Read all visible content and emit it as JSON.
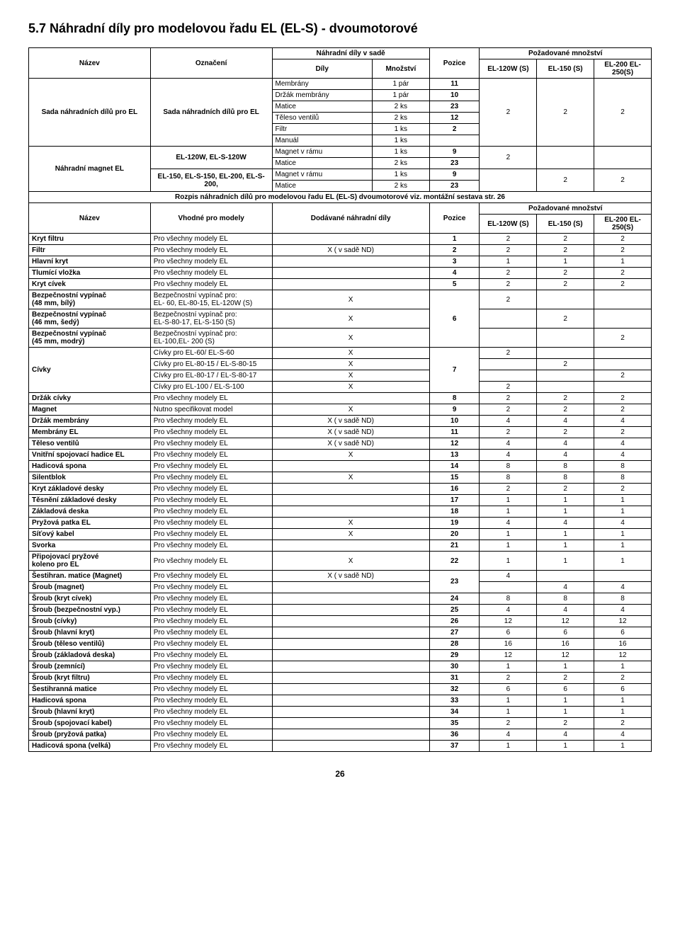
{
  "title": "5.7 Náhradní díly pro modelovou řadu EL (EL-S)  - dvoumotorové",
  "page_number": "26",
  "table1": {
    "headers": {
      "nazev": "Název",
      "oznaceni": "Označení",
      "sada": "Náhradní díly v sadě",
      "dily": "Díly",
      "mnozstvi": "Množství",
      "pozice": "Pozice",
      "pozad": "Požadované množství",
      "col_a": "EL-120W (S)",
      "col_b": "EL-150 (S)",
      "col_c": "EL-200 EL-250(S)"
    },
    "group1": {
      "nazev": "Sada náhradních dílů pro EL",
      "oznaceni": "Sada náhradních dílů pro EL",
      "rows": [
        [
          "Membrány",
          "1 pár",
          "11"
        ],
        [
          "Držák membrány",
          "1 pár",
          "10"
        ],
        [
          "Matice",
          "2 ks",
          "23"
        ],
        [
          "Těleso ventilů",
          "2 ks",
          "12"
        ],
        [
          "Filtr",
          "1 ks",
          "2"
        ],
        [
          "Manuál",
          "1 ks",
          ""
        ]
      ],
      "qty": [
        "2",
        "2",
        "2"
      ]
    },
    "group2": {
      "nazev": "Náhradní magnet EL",
      "sub1": {
        "oznaceni": "EL-120W, EL-S-120W",
        "rows": [
          [
            "Magnet v rámu",
            "1 ks",
            "9"
          ],
          [
            "Matice",
            "2 ks",
            "23"
          ]
        ],
        "qty": [
          "2",
          "",
          ""
        ]
      },
      "sub2": {
        "oznaceni": "EL-150, EL-S-150, EL-200, EL-S-200,",
        "rows": [
          [
            "Magnet v rámu",
            "1 ks",
            "9"
          ],
          [
            "Matice",
            "2 ks",
            "23"
          ]
        ],
        "qty": [
          "",
          "2",
          "2"
        ]
      }
    }
  },
  "divider": "Rozpis náhradních dílů pro modelovou řadu EL (EL-S)  dvoumotorové viz. montážní  sestava str. 26",
  "table2": {
    "headers": {
      "nazev": "Název",
      "vhodne": "Vhodné pro modely",
      "dodavane": "Dodávané náhradní díly",
      "pozice": "Pozice",
      "pozad": "Požadované množství",
      "col_a": "EL-120W (S)",
      "col_b": "EL-150 (S)",
      "col_c": "EL-200 EL-250(S)"
    },
    "rows": [
      {
        "n": "Kryt filtru",
        "v": "Pro  všechny  modely EL",
        "d": "",
        "p": "1",
        "a": "2",
        "b": "2",
        "c": "2"
      },
      {
        "n": "Filtr",
        "v": "Pro  všechny  modely EL",
        "d": "X ( v sadě ND)",
        "p": "2",
        "a": "2",
        "b": "2",
        "c": "2"
      },
      {
        "n": "Hlavní kryt",
        "v": "Pro  všechny  modely EL",
        "d": "",
        "p": "3",
        "a": "1",
        "b": "1",
        "c": "1"
      },
      {
        "n": "Tlumící vložka",
        "v": "Pro  všechny  modely EL",
        "d": "",
        "p": "4",
        "a": "2",
        "b": "2",
        "c": "2"
      },
      {
        "n": "Kryt  cívek",
        "v": "Pro  všechny  modely EL",
        "d": "",
        "p": "5",
        "a": "2",
        "b": "2",
        "c": "2"
      },
      {
        "n": "Bezpečnostní vypínač\n (48 mm, bílý)",
        "v": "Bezpečnostní vypínač pro:\nEL- 60, EL-80-15, EL-120W (S)",
        "d": "X",
        "p": "",
        "a": "2",
        "b": "",
        "c": ""
      },
      {
        "n": "Bezpečnostní vypínač\n (46 mm, šedý)",
        "v": "Bezpečnostní vypínač pro:\nEL-S-80-17, EL-S-150 (S)",
        "d": "X",
        "p": "6",
        "a": "",
        "b": "2",
        "c": ""
      },
      {
        "n": "Bezpečnostní vypínač\n(45 mm, modrý)",
        "v": "Bezpečnostní vypínač pro:\nEL-100,EL- 200 (S)",
        "d": "X",
        "p": "",
        "a": "",
        "b": "",
        "c": "2"
      },
      {
        "n": "",
        "v": "Cívky pro  EL-60/ EL-S-60",
        "d": "X",
        "p": "",
        "a": "2",
        "b": "",
        "c": "",
        "civky_start": true
      },
      {
        "n": "Cívky",
        "v": "Cívky pro EL-80-15 / EL-S-80-15",
        "d": "X",
        "p": "7",
        "a": "",
        "b": "2",
        "c": ""
      },
      {
        "n": "",
        "v": "Cívky pro EL-80-17 / EL-S-80-17",
        "d": "X",
        "p": "",
        "a": "",
        "b": "",
        "c": "2"
      },
      {
        "n": "",
        "v": "Cívky pro  EL-100 / EL-S-100",
        "d": "X",
        "p": "",
        "a": "2",
        "b": "",
        "c": ""
      },
      {
        "n": "Držák cívky",
        "v": "Pro  všechny  modely EL",
        "d": "",
        "p": "8",
        "a": "2",
        "b": "2",
        "c": "2"
      },
      {
        "n": "Magnet",
        "v": "Nutno specifikovat model",
        "d": "X",
        "p": "9",
        "a": "2",
        "b": "2",
        "c": "2"
      },
      {
        "n": "Držák membrány",
        "v": "Pro  všechny  modely EL",
        "d": "X ( v sadě ND)",
        "p": "10",
        "a": "4",
        "b": "4",
        "c": "4"
      },
      {
        "n": "Membrány EL",
        "v": "Pro  všechny  modely EL",
        "d": "X ( v sadě ND)",
        "p": "11",
        "a": "2",
        "b": "2",
        "c": "2"
      },
      {
        "n": "Těleso ventilů",
        "v": "Pro  všechny  modely EL",
        "d": "X ( v sadě ND)",
        "p": "12",
        "a": "4",
        "b": "4",
        "c": "4"
      },
      {
        "n": "Vnitřní spojovací hadice EL",
        "v": "Pro  všechny  modely EL",
        "d": "X",
        "p": "13",
        "a": "4",
        "b": "4",
        "c": "4"
      },
      {
        "n": "Hadicová spona",
        "v": "Pro  všechny  modely EL",
        "d": "",
        "p": "14",
        "a": "8",
        "b": "8",
        "c": "8"
      },
      {
        "n": "Silentblok",
        "v": "Pro  všechny  modely EL",
        "d": "X",
        "p": "15",
        "a": "8",
        "b": "8",
        "c": "8"
      },
      {
        "n": "Kryt základové desky",
        "v": "Pro  všechny  modely EL",
        "d": "",
        "p": "16",
        "a": "2",
        "b": "2",
        "c": "2"
      },
      {
        "n": "Těsnění základové desky",
        "v": "Pro  všechny  modely EL",
        "d": "",
        "p": "17",
        "a": "1",
        "b": "1",
        "c": "1"
      },
      {
        "n": "Základová deska",
        "v": "Pro  všechny  modely EL",
        "d": "",
        "p": "18",
        "a": "1",
        "b": "1",
        "c": "1"
      },
      {
        "n": "Pryžová patka EL",
        "v": "Pro  všechny  modely EL",
        "d": "X",
        "p": "19",
        "a": "4",
        "b": "4",
        "c": "4"
      },
      {
        "n": "Síťový kabel",
        "v": "Pro  všechny  modely EL",
        "d": "X",
        "p": "20",
        "a": "1",
        "b": "1",
        "c": "1"
      },
      {
        "n": "Svorka",
        "v": "Pro  všechny  modely EL",
        "d": "",
        "p": "21",
        "a": "1",
        "b": "1",
        "c": "1"
      },
      {
        "n": "Připojovací pryžové\nkoleno pro EL",
        "v": "Pro  všechny  modely EL",
        "d": "X",
        "p": "22",
        "a": "1",
        "b": "1",
        "c": "1"
      },
      {
        "n": "Šestihran.  matice      (Magnet)",
        "v": "Pro  všechny  modely EL",
        "d": "X ( v sadě ND)",
        "p": "23",
        "a": "4",
        "b": "",
        "c": "",
        "grp23_top": true
      },
      {
        "n": "Šroub  (magnet)",
        "v": "Pro  všechny  modely EL",
        "d": "",
        "p": "",
        "a": "",
        "b": "4",
        "c": "4",
        "grp23_bot": true
      },
      {
        "n": "Šroub  (kryt cívek)",
        "v": "Pro  všechny  modely EL",
        "d": "",
        "p": "24",
        "a": "8",
        "b": "8",
        "c": "8"
      },
      {
        "n": "Šroub  (bezpečnostní vyp.)",
        "v": "Pro  všechny  modely EL",
        "d": "",
        "p": "25",
        "a": "4",
        "b": "4",
        "c": "4"
      },
      {
        "n": "Šroub (cívky)",
        "v": "Pro  všechny  modely EL",
        "d": "",
        "p": "26",
        "a": "12",
        "b": "12",
        "c": "12"
      },
      {
        "n": "Šroub (hlavní kryt)",
        "v": "Pro  všechny  modely EL",
        "d": "",
        "p": "27",
        "a": "6",
        "b": "6",
        "c": "6"
      },
      {
        "n": "Šroub (těleso ventilů)",
        "v": "Pro  všechny  modely EL",
        "d": "",
        "p": "28",
        "a": "16",
        "b": "16",
        "c": "16"
      },
      {
        "n": "Šroub (základová deska)",
        "v": "Pro  všechny  modely EL",
        "d": "",
        "p": "29",
        "a": "12",
        "b": "12",
        "c": "12"
      },
      {
        "n": "Šroub (zemnící)",
        "v": "Pro  všechny  modely EL",
        "d": "",
        "p": "30",
        "a": "1",
        "b": "1",
        "c": "1"
      },
      {
        "n": "Šroub  (kryt filtru)",
        "v": "Pro  všechny  modely EL",
        "d": "",
        "p": "31",
        "a": "2",
        "b": "2",
        "c": "2"
      },
      {
        "n": "Šestihranná matice",
        "v": "Pro  všechny  modely EL",
        "d": "",
        "p": "32",
        "a": "6",
        "b": "6",
        "c": "6"
      },
      {
        "n": "Hadicová spona",
        "v": "Pro  všechny  modely EL",
        "d": "",
        "p": "33",
        "a": "1",
        "b": "1",
        "c": "1"
      },
      {
        "n": "Šroub (hlavní kryt)",
        "v": "Pro  všechny  modely EL",
        "d": "",
        "p": "34",
        "a": "1",
        "b": "1",
        "c": "1"
      },
      {
        "n": "Šroub (spojovací kabel)",
        "v": "Pro  všechny  modely EL",
        "d": "",
        "p": "35",
        "a": "2",
        "b": "2",
        "c": "2"
      },
      {
        "n": "Šroub (pryžová patka)",
        "v": "Pro  všechny  modely EL",
        "d": "",
        "p": "36",
        "a": "4",
        "b": "4",
        "c": "4"
      },
      {
        "n": "Hadicová spona  (velká)",
        "v": "Pro  všechny  modely EL",
        "d": "",
        "p": "37",
        "a": "1",
        "b": "1",
        "c": "1"
      }
    ]
  }
}
